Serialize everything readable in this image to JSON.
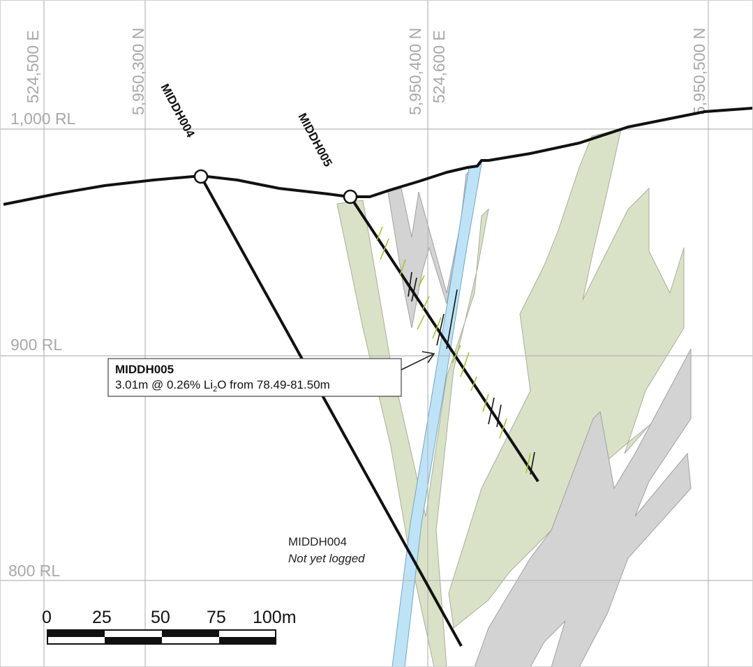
{
  "grid": {
    "eastings": [
      "524,500 E",
      "524,600 E"
    ],
    "northings": [
      "5,950,300 N",
      "5,950,400 N",
      "5,950,500 N"
    ],
    "rl_levels": [
      "1,000 RL",
      "900 RL",
      "800 RL"
    ]
  },
  "drillholes": [
    {
      "name": "MIDDH004"
    },
    {
      "name": "MIDDH005"
    }
  ],
  "callout": {
    "title": "MIDDH005",
    "text_before": "3.01m @ 0.26% Li",
    "subscript": "2",
    "text_after": "O from 78.49-81.50m"
  },
  "note": {
    "hole": "MIDDH004",
    "status": "Not yet logged"
  },
  "scale_bar": {
    "labels": [
      "0",
      "25",
      "50",
      "75",
      "100m"
    ]
  },
  "colors": {
    "pegmatite": "#d9e2c6",
    "host_grey": "#d3d3d3",
    "dyke_blue": "#bfe3f6",
    "interval_green": "#9fc63a"
  }
}
